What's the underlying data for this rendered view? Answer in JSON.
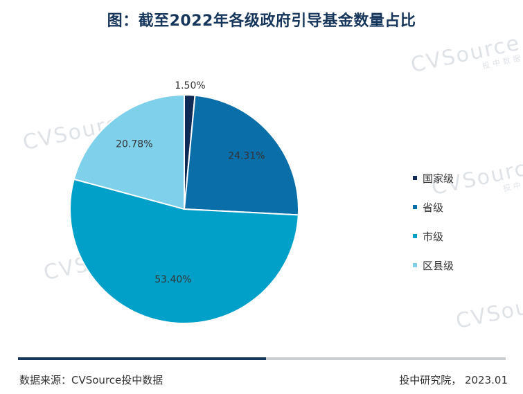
{
  "title": "图：截至2022年各级政府引导基金数量占比",
  "colors": {
    "title": "#16365c",
    "bar_dark": "#16365c",
    "bar_light": "#c9ccd1"
  },
  "chart_data": {
    "type": "pie",
    "categories": [
      "国家级",
      "省级",
      "市级",
      "区县级"
    ],
    "values": [
      1.5,
      24.31,
      53.4,
      20.78
    ],
    "labels": [
      "1.50%",
      "24.31%",
      "53.40%",
      "20.78%"
    ],
    "colors": [
      "#0f2a54",
      "#0a6fa8",
      "#00a0c8",
      "#7fd0ea"
    ],
    "legend_position": "right"
  },
  "watermark": {
    "brand": "CVSource",
    "sub": "投中数据"
  },
  "footer": {
    "source": "数据来源：CVSource投中数据",
    "credit": "投中研究院， 2023.01"
  }
}
